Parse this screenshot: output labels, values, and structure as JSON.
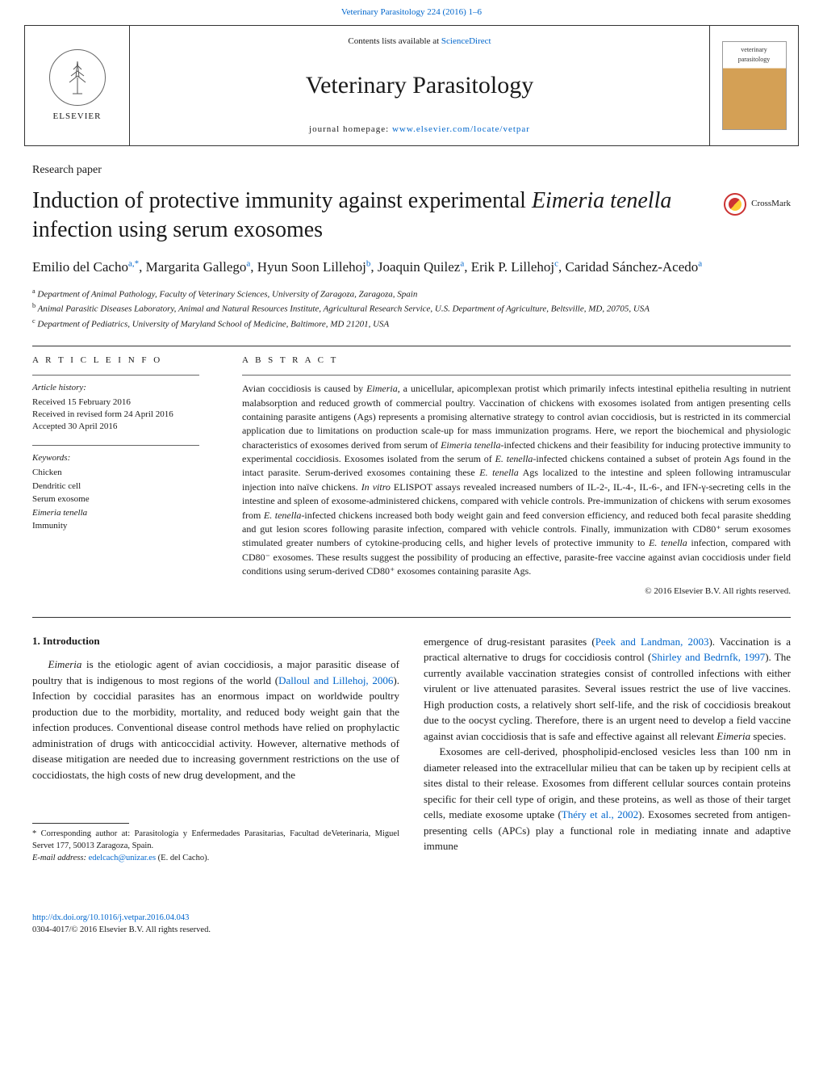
{
  "journal_link_text": "Veterinary Parasitology 224 (2016) 1–6",
  "header": {
    "contents_prefix": "Contents lists available at ",
    "contents_link": "ScienceDirect",
    "journal_title": "Veterinary Parasitology",
    "homepage_prefix": "journal homepage: ",
    "homepage_url": "www.elsevier.com/locate/vetpar",
    "elsevier_label": "ELSEVIER",
    "cover_text": "veterinary parasitology"
  },
  "section_label": "Research paper",
  "title_parts": {
    "pre": "Induction of protective immunity against experimental ",
    "em": "Eimeria tenella",
    "post": " infection using serum exosomes"
  },
  "crossmark_label": "CrossMark",
  "authors_html": "Emilio del Cacho<sup>a,*</sup>, Margarita Gallego<sup>a</sup>, Hyun Soon Lillehoj<sup>b</sup>, Joaquin Quilez<sup>a</sup>, Erik P. Lillehoj<sup>c</sup>, Caridad Sánchez-Acedo<sup>a</sup>",
  "affiliations": [
    {
      "sup": "a",
      "text": "Department of Animal Pathology, Faculty of Veterinary Sciences, University of Zaragoza, Zaragoza, Spain"
    },
    {
      "sup": "b",
      "text": "Animal Parasitic Diseases Laboratory, Animal and Natural Resources Institute, Agricultural Research Service, U.S. Department of Agriculture, Beltsville, MD, 20705, USA"
    },
    {
      "sup": "c",
      "text": "Department of Pediatrics, University of Maryland School of Medicine, Baltimore, MD 21201, USA"
    }
  ],
  "article_info": {
    "heading": "A R T I C L E   I N F O",
    "history_label": "Article history:",
    "history": [
      "Received 15 February 2016",
      "Received in revised form 24 April 2016",
      "Accepted 30 April 2016"
    ],
    "keywords_label": "Keywords:",
    "keywords": [
      "Chicken",
      "Dendritic cell",
      "Serum exosome",
      "Eimeria tenella",
      "Immunity"
    ]
  },
  "abstract": {
    "heading": "A B S T R A C T",
    "text": "Avian coccidiosis is caused by Eimeria, a unicellular, apicomplexan protist which primarily infects intestinal epithelia resulting in nutrient malabsorption and reduced growth of commercial poultry. Vaccination of chickens with exosomes isolated from antigen presenting cells containing parasite antigens (Ags) represents a promising alternative strategy to control avian coccidiosis, but is restricted in its commercial application due to limitations on production scale-up for mass immunization programs. Here, we report the biochemical and physiologic characteristics of exosomes derived from serum of Eimeria tenella-infected chickens and their feasibility for inducing protective immunity to experimental coccidiosis. Exosomes isolated from the serum of E. tenella-infected chickens contained a subset of protein Ags found in the intact parasite. Serum-derived exosomes containing these E. tenella Ags localized to the intestine and spleen following intramuscular injection into naïve chickens. In vitro ELISPOT assays revealed increased numbers of IL-2-, IL-4-, IL-6-, and IFN-γ-secreting cells in the intestine and spleen of exosome-administered chickens, compared with vehicle controls. Pre-immunization of chickens with serum exosomes from E. tenella-infected chickens increased both body weight gain and feed conversion efficiency, and reduced both fecal parasite shedding and gut lesion scores following parasite infection, compared with vehicle controls. Finally, immunization with CD80⁺ serum exosomes stimulated greater numbers of cytokine-producing cells, and higher levels of protective immunity to E. tenella infection, compared with CD80⁻ exosomes. These results suggest the possibility of producing an effective, parasite-free vaccine against avian coccidiosis under field conditions using serum-derived CD80⁺ exosomes containing parasite Ags.",
    "copyright": "© 2016 Elsevier B.V. All rights reserved."
  },
  "body": {
    "intro_heading": "1.  Introduction",
    "col1_p1_pre": "Eimeria",
    "col1_p1": " is the etiologic agent of avian coccidiosis, a major parasitic disease of poultry that is indigenous to most regions of the world (",
    "col1_p1_ref": "Dalloul and Lillehoj, 2006",
    "col1_p1_post": "). Infection by coccidial parasites has an enormous impact on worldwide poultry production due to the morbidity, mortality, and reduced body weight gain that the infection produces. Conventional disease control methods have relied on prophylactic administration of drugs with anticoccidial activity. However, alternative methods of disease mitigation are needed due to increasing government restrictions on the use of coccidiostats, the high costs of new drug development, and the",
    "col2_p1_a": "emergence of drug-resistant parasites (",
    "col2_p1_ref1": "Peek and Landman, 2003",
    "col2_p1_b": "). Vaccination is a practical alternative to drugs for coccidiosis control (",
    "col2_p1_ref2": "Shirley and Bedrnfk, 1997",
    "col2_p1_c": "). The currently available vaccination strategies consist of controlled infections with either virulent or live attenuated parasites. Several issues restrict the use of live vaccines. High production costs, a relatively short self-life, and the risk of coccidiosis breakout due to the oocyst cycling. Therefore, there is an urgent need to develop a field vaccine against avian coccidiosis that is safe and effective against all relevant ",
    "col2_p1_em": "Eimeria",
    "col2_p1_d": " species.",
    "col2_p2_a": "Exosomes are cell-derived, phospholipid-enclosed vesicles less than 100 nm in diameter released into the extracellular milieu that can be taken up by recipient cells at sites distal to their release. Exosomes from different cellular sources contain proteins specific for their cell type of origin, and these proteins, as well as those of their target cells, mediate exosome uptake (",
    "col2_p2_ref": "Théry et al., 2002",
    "col2_p2_b": "). Exosomes secreted from antigen-presenting cells (APCs) play a functional role in mediating innate and adaptive immune"
  },
  "footnote": {
    "corr": "* Corresponding author at: Parasitología y Enfermedades Parasitarias, Facultad deVeterinaria, Miguel Servet 177, 50013 Zaragoza, Spain.",
    "email_label": "E-mail address: ",
    "email": "edelcach@unizar.es",
    "email_owner": " (E. del Cacho)."
  },
  "doi": {
    "url": "http://dx.doi.org/10.1016/j.vetpar.2016.04.043",
    "rights": "0304-4017/© 2016 Elsevier B.V. All rights reserved."
  },
  "colors": {
    "link": "#0066cc",
    "text": "#1a1a1a",
    "border": "#333333"
  }
}
